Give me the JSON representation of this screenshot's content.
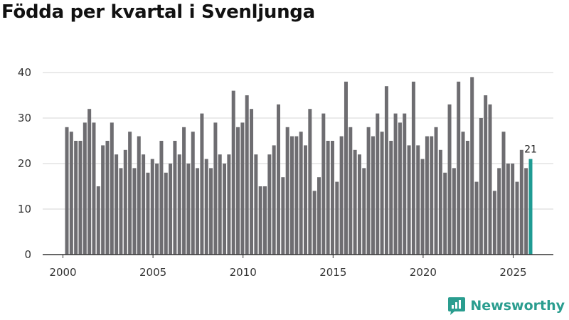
{
  "chart_data": {
    "type": "bar",
    "title": "Födda per kvartal i Svenljunga",
    "xlabel": "",
    "ylabel": "",
    "ylim": [
      0,
      40
    ],
    "yticks": [
      0,
      10,
      20,
      30,
      40
    ],
    "xticks": [
      "2000",
      "2005",
      "2010",
      "2015",
      "2020",
      "2025"
    ],
    "grid": true,
    "bar_color": "#6e6d71",
    "highlight_color": "#1f9b93",
    "categories": [
      "2000 Q1",
      "2000 Q2",
      "2000 Q3",
      "2000 Q4",
      "2001 Q1",
      "2001 Q2",
      "2001 Q3",
      "2001 Q4",
      "2002 Q1",
      "2002 Q2",
      "2002 Q3",
      "2002 Q4",
      "2003 Q1",
      "2003 Q2",
      "2003 Q3",
      "2003 Q4",
      "2004 Q1",
      "2004 Q2",
      "2004 Q3",
      "2004 Q4",
      "2005 Q1",
      "2005 Q2",
      "2005 Q3",
      "2005 Q4",
      "2006 Q1",
      "2006 Q2",
      "2006 Q3",
      "2006 Q4",
      "2007 Q1",
      "2007 Q2",
      "2007 Q3",
      "2007 Q4",
      "2008 Q1",
      "2008 Q2",
      "2008 Q3",
      "2008 Q4",
      "2009 Q1",
      "2009 Q2",
      "2009 Q3",
      "2009 Q4",
      "2010 Q1",
      "2010 Q2",
      "2010 Q3",
      "2010 Q4",
      "2011 Q1",
      "2011 Q2",
      "2011 Q3",
      "2011 Q4",
      "2012 Q1",
      "2012 Q2",
      "2012 Q3",
      "2012 Q4",
      "2013 Q1",
      "2013 Q2",
      "2013 Q3",
      "2013 Q4",
      "2014 Q1",
      "2014 Q2",
      "2014 Q3",
      "2014 Q4",
      "2015 Q1",
      "2015 Q2",
      "2015 Q3",
      "2015 Q4",
      "2016 Q1",
      "2016 Q2",
      "2016 Q3",
      "2016 Q4",
      "2017 Q1",
      "2017 Q2",
      "2017 Q3",
      "2017 Q4",
      "2018 Q1",
      "2018 Q2",
      "2018 Q3",
      "2018 Q4",
      "2019 Q1",
      "2019 Q2",
      "2019 Q3",
      "2019 Q4",
      "2020 Q1",
      "2020 Q2",
      "2020 Q3",
      "2020 Q4",
      "2021 Q1",
      "2021 Q2",
      "2021 Q3",
      "2021 Q4",
      "2022 Q1",
      "2022 Q2",
      "2022 Q3",
      "2022 Q4",
      "2023 Q1",
      "2023 Q2",
      "2023 Q3",
      "2023 Q4",
      "2024 Q1",
      "2024 Q2",
      "2024 Q3",
      "2024 Q4",
      "2025 Q1",
      "2025 Q2",
      "2025 Q3",
      "2025 Q4"
    ],
    "values": [
      28,
      27,
      25,
      25,
      29,
      32,
      29,
      15,
      24,
      25,
      29,
      22,
      19,
      23,
      27,
      19,
      26,
      22,
      18,
      21,
      20,
      25,
      18,
      20,
      25,
      22,
      28,
      20,
      27,
      19,
      31,
      21,
      19,
      29,
      22,
      20,
      22,
      36,
      28,
      29,
      35,
      32,
      22,
      15,
      15,
      22,
      24,
      33,
      17,
      28,
      26,
      26,
      27,
      24,
      32,
      14,
      17,
      31,
      25,
      25,
      16,
      26,
      38,
      28,
      23,
      22,
      19,
      28,
      26,
      31,
      27,
      37,
      25,
      31,
      29,
      31,
      24,
      38,
      24,
      21,
      26,
      26,
      28,
      23,
      18,
      33,
      19,
      38,
      27,
      25,
      39,
      16,
      30,
      35,
      33,
      14,
      19,
      27,
      20,
      20,
      16,
      23,
      19,
      21
    ],
    "highlight_index": 103,
    "annotations": [
      {
        "category": "2025 Q4",
        "text": "21"
      }
    ]
  },
  "brand": {
    "name": "Newsworthy"
  }
}
